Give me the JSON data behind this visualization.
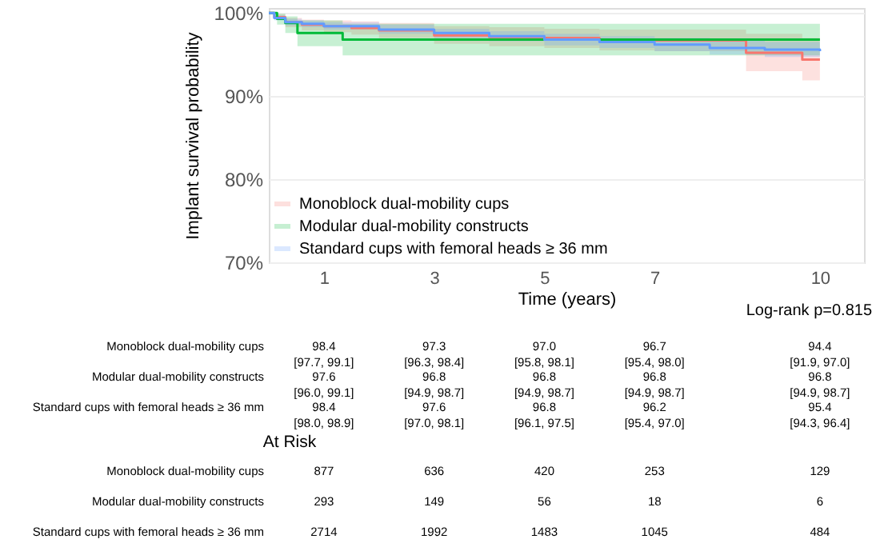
{
  "chart_data": {
    "type": "step",
    "ylabel": "Implant survival probability",
    "xlabel": "Time (years)",
    "xlim": [
      0,
      10.8
    ],
    "xticks": [
      1,
      3,
      5,
      7,
      10
    ],
    "ylim": [
      70,
      100.6
    ],
    "yticks": [
      {
        "value": 70,
        "label": "70%"
      },
      {
        "value": 80,
        "label": "80%"
      },
      {
        "value": 90,
        "label": "90%"
      },
      {
        "value": 100,
        "label": "100%"
      }
    ],
    "grid": "y",
    "legend": "bottom left",
    "series": [
      {
        "name": "Monoblock dual-mobility cups",
        "color": "#f8766d",
        "x": [
          0,
          0.1,
          0.3,
          0.6,
          1,
          1.5,
          2,
          3,
          4,
          5,
          6,
          7,
          8.66,
          9.68,
          10
        ],
        "values": [
          100,
          99.5,
          98.9,
          98.6,
          98.4,
          98.2,
          97.9,
          97.3,
          97.1,
          97.0,
          96.8,
          96.7,
          95.2,
          94.4,
          94.4
        ],
        "lower": [
          100,
          99.2,
          98.3,
          97.9,
          97.7,
          97.4,
          97.0,
          96.3,
          96.0,
          95.8,
          95.5,
          95.4,
          93.0,
          91.9,
          91.9
        ],
        "upper": [
          100,
          99.8,
          99.4,
          99.2,
          99.1,
          99.0,
          98.8,
          98.4,
          98.3,
          98.1,
          98.0,
          98.0,
          97.5,
          97.0,
          97.0
        ]
      },
      {
        "name": "Modular dual-mobility constructs",
        "color": "#00ba38",
        "x": [
          0,
          0.15,
          0.3,
          0.52,
          1,
          1.34,
          3,
          5,
          7,
          10
        ],
        "values": [
          100,
          99.3,
          98.8,
          97.6,
          97.6,
          96.8,
          96.8,
          96.8,
          96.8,
          96.8
        ],
        "lower": [
          100,
          98.6,
          97.6,
          96.0,
          96.0,
          94.9,
          94.9,
          94.9,
          94.9,
          94.9
        ],
        "upper": [
          100,
          99.9,
          99.6,
          99.1,
          99.1,
          98.7,
          98.7,
          98.7,
          98.7,
          98.7
        ]
      },
      {
        "name": "Standard cups with femoral heads ≥ 36 mm",
        "color": "#619cff",
        "x": [
          0,
          0.1,
          0.3,
          0.6,
          1,
          2,
          3,
          4,
          5,
          6,
          7,
          8,
          9,
          10
        ],
        "values": [
          100,
          99.4,
          98.9,
          98.7,
          98.4,
          98.0,
          97.6,
          97.2,
          96.8,
          96.5,
          96.2,
          95.8,
          95.6,
          95.4
        ],
        "lower": [
          100,
          99.1,
          98.5,
          98.3,
          98.0,
          97.5,
          97.0,
          96.6,
          96.1,
          95.8,
          95.4,
          95.0,
          94.7,
          94.3
        ],
        "upper": [
          100,
          99.7,
          99.3,
          99.1,
          98.9,
          98.6,
          98.1,
          97.8,
          97.5,
          97.2,
          97.0,
          96.7,
          96.5,
          96.4
        ]
      }
    ],
    "annotations": [
      "Log-rank p=0.815",
      "At Risk",
      "Monoblock dual-mobility cups",
      "98.4\n[97.7, 99.1]",
      "97.3\n[96.3, 98.4]",
      "97.0\n[95.8, 98.1]",
      "96.7\n[95.4, 98.0]",
      "94.4\n[91.9, 97.0]",
      "Modular dual-mobility constructs",
      "97.6\n[96.0, 99.1]",
      "96.8\n[94.9, 98.7]",
      "96.8\n[94.9, 98.7]",
      "96.8\n[94.9, 98.7]",
      "96.8\n[94.9, 98.7]",
      "Standard cups with femoral heads ≥ 36 mm",
      "98.4\n[98.0, 98.9]",
      "97.6\n[97.0, 98.1]",
      "96.8\n[96.1, 97.5]",
      "96.2\n[95.4, 97.0]",
      "95.4\n[94.3, 96.4]",
      "Monoblock dual-mobility cups",
      "877",
      "636",
      "420",
      "253",
      "129",
      "Modular dual-mobility constructs",
      "293",
      "149",
      "56",
      "18",
      "6",
      "Standard cups with femoral heads ≥ 36 mm",
      "2714",
      "1992",
      "1483",
      "1045",
      "484"
    ]
  }
}
